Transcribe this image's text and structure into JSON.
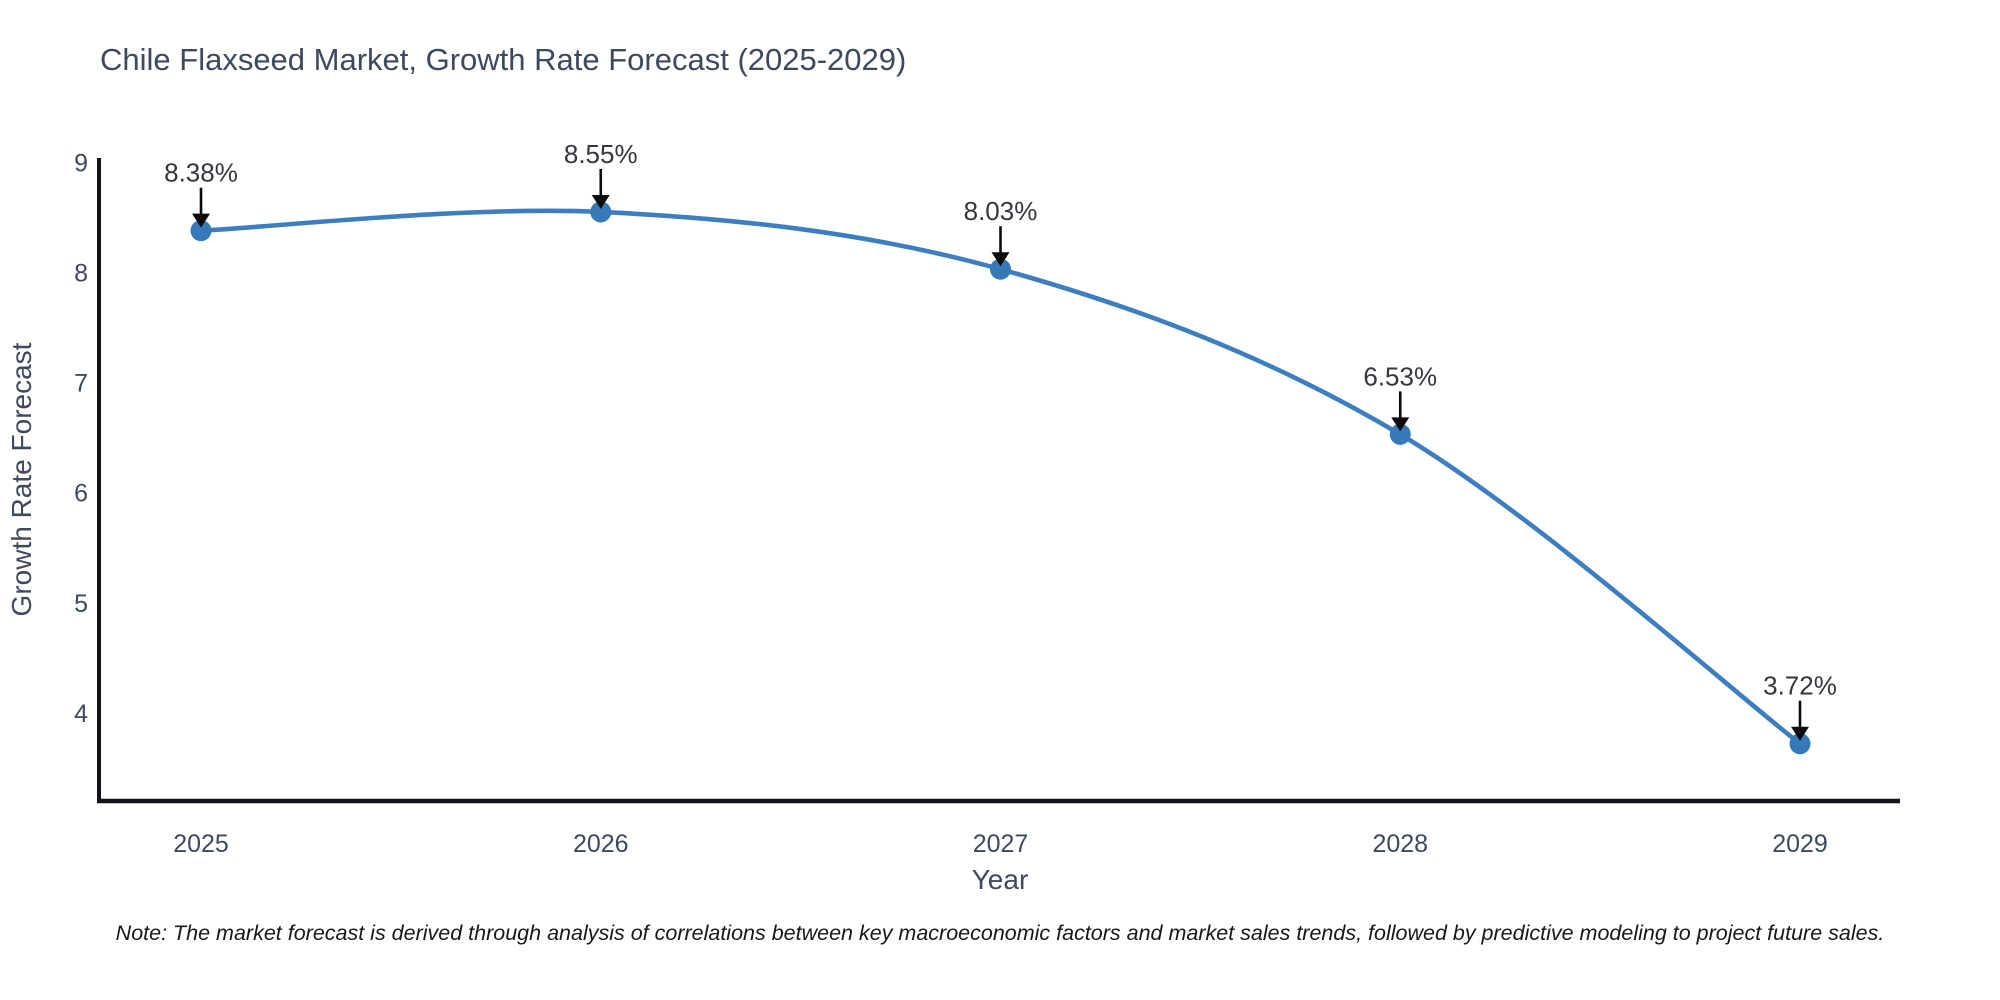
{
  "note": "Note: The market forecast is derived through analysis of correlations between key macroeconomic factors and market sales trends, followed by predictive modeling to project future sales.",
  "chart_data": {
    "type": "line",
    "title": "Chile Flaxseed Market, Growth Rate Forecast (2025-2029)",
    "xlabel": "Year",
    "ylabel": "Growth Rate Forecast",
    "categories": [
      "2025",
      "2026",
      "2027",
      "2028",
      "2029"
    ],
    "values": [
      8.38,
      8.55,
      8.03,
      6.53,
      3.72
    ],
    "point_labels": [
      "8.38%",
      "8.55%",
      "8.03%",
      "6.53%",
      "3.72%"
    ],
    "yticks": [
      9,
      8,
      7,
      6,
      5,
      4
    ],
    "ylim": [
      3.2,
      9.04
    ],
    "grid": false,
    "legend": false,
    "line_color": "#3c7ebf",
    "marker_color": "#3579b8",
    "axis_color": "#101418",
    "tick_color": "#3d4a5e",
    "axis_label_color": "#3d4a5e",
    "annotation_text_color": "#33383e",
    "annotation_arrow_color": "#0c0c0c"
  }
}
